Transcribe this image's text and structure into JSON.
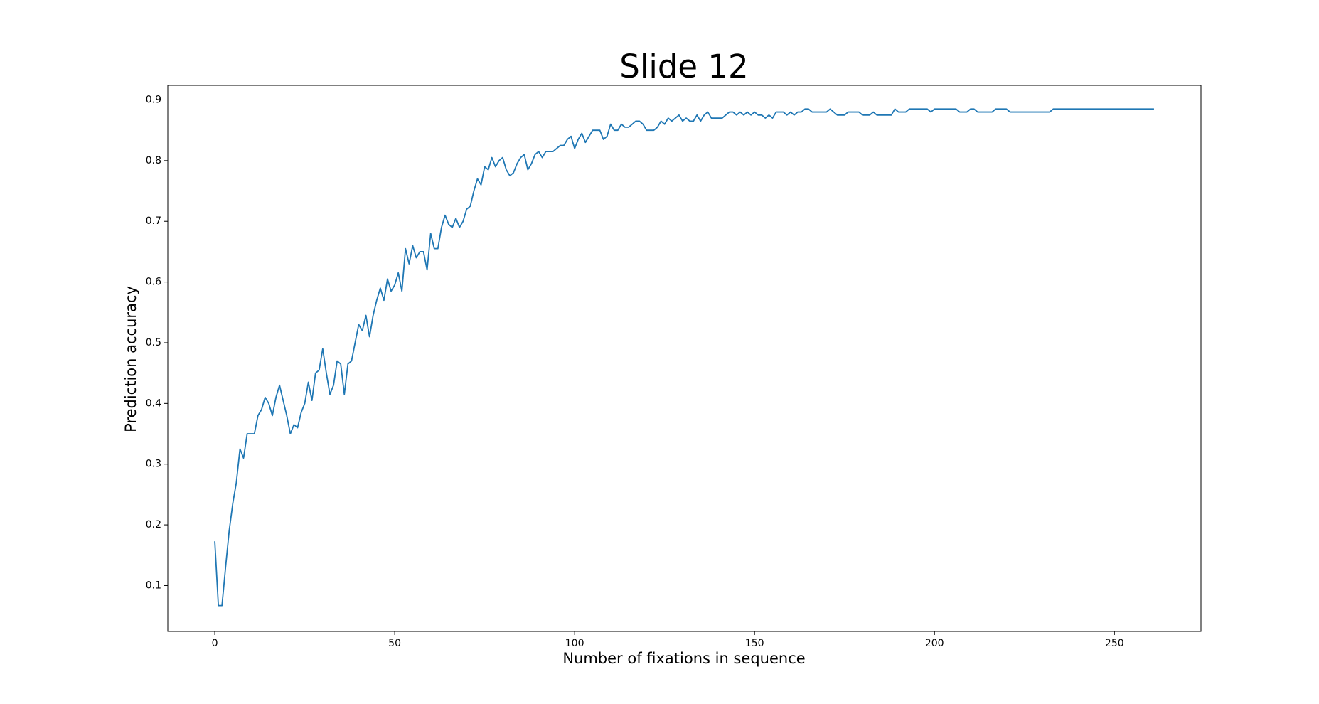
{
  "chart_data": {
    "type": "line",
    "title": "Slide 12",
    "x_label": "Number of fixations in sequence",
    "y_label": "Prediction accuracy",
    "x": [
      0,
      1,
      2,
      3,
      4,
      5,
      6,
      7,
      8,
      9,
      10,
      11,
      12,
      13,
      14,
      15,
      16,
      17,
      18,
      19,
      20,
      21,
      22,
      23,
      24,
      25,
      26,
      27,
      28,
      29,
      30,
      31,
      32,
      33,
      34,
      35,
      36,
      37,
      38,
      39,
      40,
      41,
      42,
      43,
      44,
      45,
      46,
      47,
      48,
      49,
      50,
      51,
      52,
      53,
      54,
      55,
      56,
      57,
      58,
      59,
      60,
      61,
      62,
      63,
      64,
      65,
      66,
      67,
      68,
      69,
      70,
      71,
      72,
      73,
      74,
      75,
      76,
      77,
      78,
      79,
      80,
      81,
      82,
      83,
      84,
      85,
      86,
      87,
      88,
      89,
      90,
      91,
      92,
      93,
      94,
      95,
      96,
      97,
      98,
      99,
      100,
      101,
      102,
      103,
      104,
      105,
      106,
      107,
      108,
      109,
      110,
      111,
      112,
      113,
      114,
      115,
      116,
      117,
      118,
      119,
      120,
      121,
      122,
      123,
      124,
      125,
      126,
      127,
      128,
      129,
      130,
      131,
      132,
      133,
      134,
      135,
      136,
      137,
      138,
      139,
      140,
      141,
      142,
      143,
      144,
      145,
      146,
      147,
      148,
      149,
      150,
      151,
      152,
      153,
      154,
      155,
      156,
      157,
      158,
      159,
      160,
      161,
      162,
      163,
      164,
      165,
      166,
      167,
      168,
      169,
      170,
      171,
      172,
      173,
      174,
      175,
      176,
      177,
      178,
      179,
      180,
      181,
      182,
      183,
      184,
      185,
      186,
      187,
      188,
      189,
      190,
      191,
      192,
      193,
      194,
      195,
      196,
      197,
      198,
      199,
      200,
      201,
      202,
      203,
      204,
      205,
      206,
      207,
      208,
      209,
      210,
      211,
      212,
      213,
      214,
      215,
      216,
      217,
      218,
      219,
      220,
      221,
      222,
      223,
      224,
      225,
      226,
      227,
      228,
      229,
      230,
      231,
      232,
      233,
      234,
      235,
      236,
      237,
      238,
      239,
      240,
      241,
      242,
      243,
      244,
      245,
      246,
      247,
      248,
      249,
      250,
      251,
      252,
      253,
      254,
      255,
      256,
      257,
      258,
      259,
      260,
      261
    ],
    "series": [
      {
        "name": "accuracy",
        "color": "#1f77b4",
        "values": [
          0.173,
          0.067,
          0.067,
          0.13,
          0.19,
          0.235,
          0.27,
          0.325,
          0.31,
          0.35,
          0.35,
          0.35,
          0.38,
          0.39,
          0.41,
          0.4,
          0.38,
          0.41,
          0.43,
          0.405,
          0.38,
          0.35,
          0.365,
          0.36,
          0.385,
          0.4,
          0.435,
          0.405,
          0.45,
          0.455,
          0.49,
          0.45,
          0.415,
          0.43,
          0.47,
          0.465,
          0.415,
          0.465,
          0.47,
          0.5,
          0.53,
          0.52,
          0.545,
          0.51,
          0.545,
          0.57,
          0.59,
          0.57,
          0.605,
          0.585,
          0.595,
          0.615,
          0.585,
          0.655,
          0.63,
          0.66,
          0.64,
          0.65,
          0.65,
          0.62,
          0.68,
          0.655,
          0.655,
          0.69,
          0.71,
          0.695,
          0.69,
          0.705,
          0.69,
          0.7,
          0.72,
          0.725,
          0.75,
          0.77,
          0.76,
          0.79,
          0.785,
          0.805,
          0.79,
          0.8,
          0.805,
          0.785,
          0.775,
          0.78,
          0.795,
          0.805,
          0.81,
          0.785,
          0.795,
          0.81,
          0.815,
          0.805,
          0.815,
          0.815,
          0.815,
          0.82,
          0.825,
          0.825,
          0.835,
          0.84,
          0.82,
          0.835,
          0.845,
          0.83,
          0.84,
          0.85,
          0.85,
          0.85,
          0.835,
          0.84,
          0.86,
          0.85,
          0.85,
          0.86,
          0.855,
          0.855,
          0.86,
          0.865,
          0.865,
          0.86,
          0.85,
          0.85,
          0.85,
          0.855,
          0.865,
          0.86,
          0.87,
          0.865,
          0.87,
          0.875,
          0.865,
          0.87,
          0.865,
          0.865,
          0.875,
          0.865,
          0.875,
          0.88,
          0.87,
          0.87,
          0.87,
          0.87,
          0.875,
          0.88,
          0.88,
          0.875,
          0.88,
          0.875,
          0.88,
          0.875,
          0.88,
          0.875,
          0.875,
          0.87,
          0.875,
          0.87,
          0.88,
          0.88,
          0.88,
          0.875,
          0.88,
          0.875,
          0.88,
          0.88,
          0.885,
          0.885,
          0.88,
          0.88,
          0.88,
          0.88,
          0.88,
          0.885,
          0.88,
          0.875,
          0.875,
          0.875,
          0.88,
          0.88,
          0.88,
          0.88,
          0.875,
          0.875,
          0.875,
          0.88,
          0.875,
          0.875,
          0.875,
          0.875,
          0.875,
          0.885,
          0.88,
          0.88,
          0.88,
          0.885,
          0.885,
          0.885,
          0.885,
          0.885,
          0.885,
          0.88,
          0.885,
          0.885,
          0.885,
          0.885,
          0.885,
          0.885,
          0.885,
          0.88,
          0.88,
          0.88,
          0.885,
          0.885,
          0.88,
          0.88,
          0.88,
          0.88,
          0.88,
          0.885,
          0.885,
          0.885,
          0.885,
          0.88,
          0.88,
          0.88,
          0.88,
          0.88,
          0.88,
          0.88,
          0.88,
          0.88,
          0.88,
          0.88,
          0.88,
          0.885,
          0.885,
          0.885,
          0.885,
          0.885,
          0.885,
          0.885,
          0.885,
          0.885,
          0.885,
          0.885,
          0.885,
          0.885,
          0.885,
          0.885,
          0.885,
          0.885,
          0.885,
          0.885,
          0.885,
          0.885,
          0.885,
          0.885,
          0.885,
          0.885,
          0.885,
          0.885,
          0.885,
          0.885
        ]
      }
    ],
    "xlim": [
      -13.05,
      274.05
    ],
    "ylim": [
      0.0244,
      0.924
    ],
    "xticks": [
      0,
      50,
      100,
      150,
      200,
      250
    ],
    "yticks": [
      0.1,
      0.2,
      0.3,
      0.4,
      0.5,
      0.6,
      0.7,
      0.8,
      0.9
    ]
  }
}
